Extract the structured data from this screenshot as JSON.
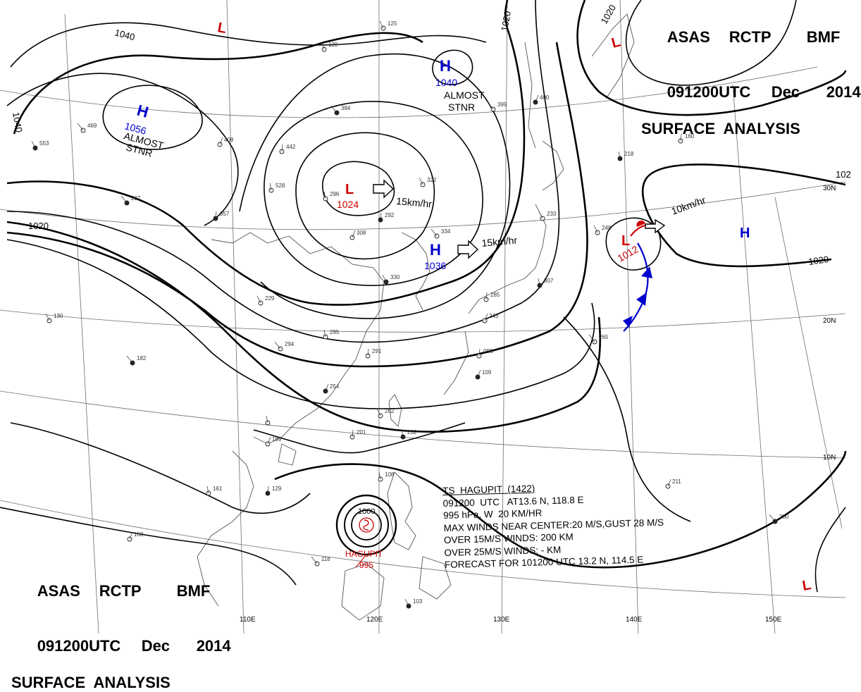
{
  "header": {
    "line1": [
      "ASAS",
      "RCTP",
      "BMF"
    ],
    "line2": [
      "091200UTC",
      "Dec",
      "2014"
    ],
    "line3": "SURFACE  ANALYSIS"
  },
  "isobars": {
    "labels": [
      "1040",
      "1040",
      "1020",
      "1020",
      "1020",
      "1020",
      "102"
    ]
  },
  "pressure_systems": [
    {
      "type": "H",
      "value": "1056",
      "note": [
        "ALMOST",
        "STNR"
      ],
      "color": "#0000cc"
    },
    {
      "type": "H",
      "value": "1040",
      "note": [
        "ALMOST",
        "STNR"
      ],
      "color": "#0000cc"
    },
    {
      "type": "H",
      "value": "1036",
      "motion": "15km/hr",
      "color": "#0000cc"
    },
    {
      "type": "H",
      "value": "",
      "color": "#0000cc"
    },
    {
      "type": "L",
      "value": "1024",
      "motion": "15km/hr",
      "color": "#cc0000"
    },
    {
      "type": "L",
      "value": "1012",
      "motion": "10km/hr",
      "color": "#cc0000"
    },
    {
      "type": "L",
      "value": "",
      "color": "#cc0000"
    },
    {
      "type": "L",
      "value": "",
      "color": "#cc0000"
    },
    {
      "type": "L",
      "value": "",
      "color": "#cc0000"
    }
  ],
  "typhoon": {
    "name": "HAGUPIT",
    "center_pressure": "995",
    "isobar_label": "1000",
    "info": [
      "TS  HAGUPIT  (1422)",
      "091200  UTC   AT13.6 N, 118.8 E",
      "995 hPa, W  20 KM/HR",
      "MAX WINDS NEAR CENTER:20 M/S,GUST 28 M/S",
      "OVER 15M/S WINDS: 200 KM",
      "OVER 25M/S WINDS: - KM",
      "FORECAST FOR 101200 UTC 13.2 N, 114.5 E"
    ]
  },
  "grid_labels": {
    "longitude": [
      "110E",
      "120E",
      "130E",
      "140E",
      "150E"
    ],
    "latitude": [
      "30N",
      "20N",
      "10N"
    ]
  },
  "station_samples": [
    "384",
    "322",
    "296",
    "292",
    "308",
    "334",
    "330",
    "295",
    "291",
    "254",
    "294",
    "262",
    "202",
    "201",
    "189",
    "182",
    "130",
    "161",
    "129",
    "160",
    "118",
    "103",
    "108",
    "098",
    "109",
    "265",
    "248",
    "218",
    "160",
    "211",
    "200",
    "125",
    "120",
    "357",
    "408",
    "469",
    "553",
    "528",
    "442",
    "400",
    "399",
    "233",
    "307",
    "285",
    "243",
    "207",
    "229"
  ],
  "colors": {
    "isobar": "#000000",
    "grid": "#555555",
    "coast": "#444444",
    "high": "#0000cc",
    "low": "#cc0000",
    "cold_front": "#0000cc",
    "warm_front": "#cc0000"
  }
}
